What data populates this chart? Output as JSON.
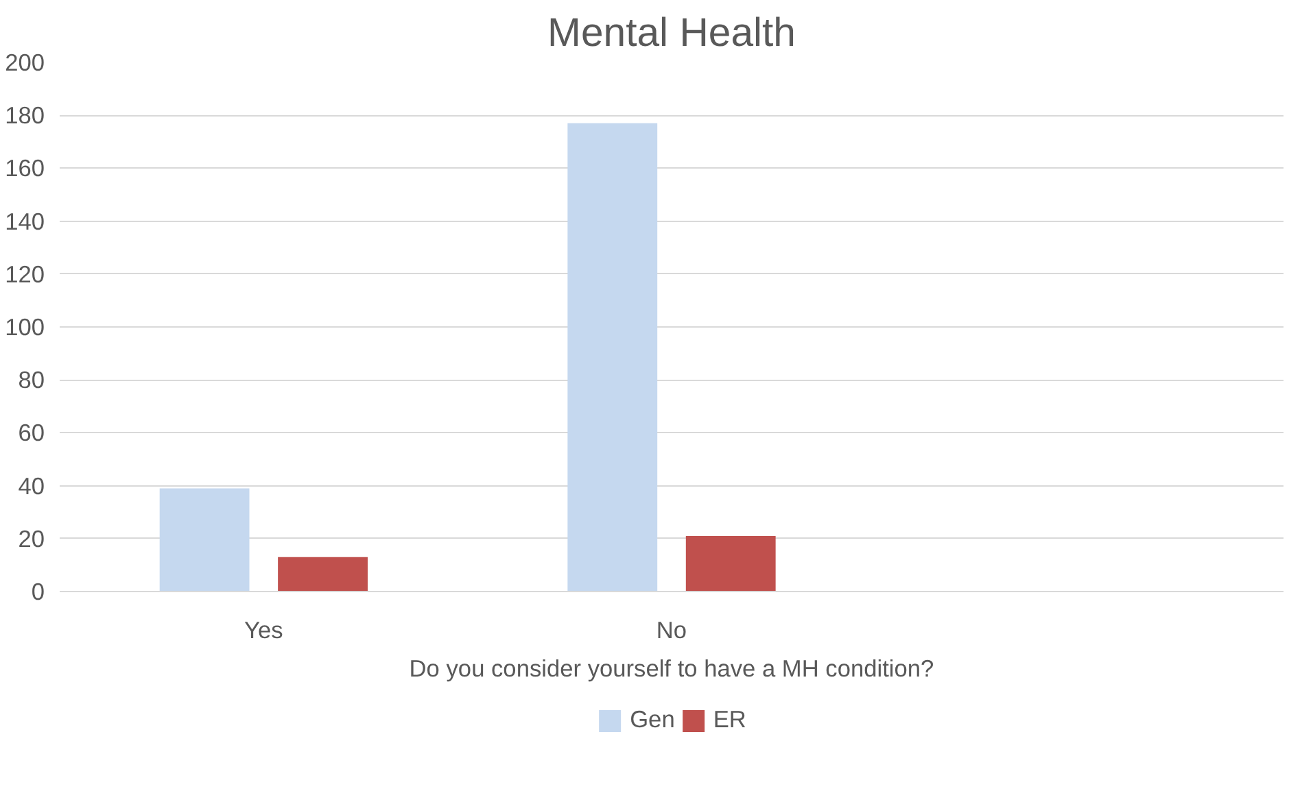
{
  "chart_data": {
    "type": "bar",
    "title": "Mental Health",
    "xlabel": "Do you consider yourself to have a MH condition?",
    "categories": [
      "Yes",
      "No",
      null
    ],
    "series": [
      {
        "name": "Gen",
        "color": "#c5d8ef",
        "values": [
          39,
          177,
          null
        ]
      },
      {
        "name": "ER",
        "color": "#c0504d",
        "values": [
          13,
          21,
          null
        ]
      }
    ],
    "ylim": [
      0,
      200
    ],
    "yticks": [
      0,
      20,
      40,
      60,
      80,
      100,
      120,
      140,
      160,
      180,
      200
    ],
    "grid": "y",
    "legend": "bottom"
  }
}
